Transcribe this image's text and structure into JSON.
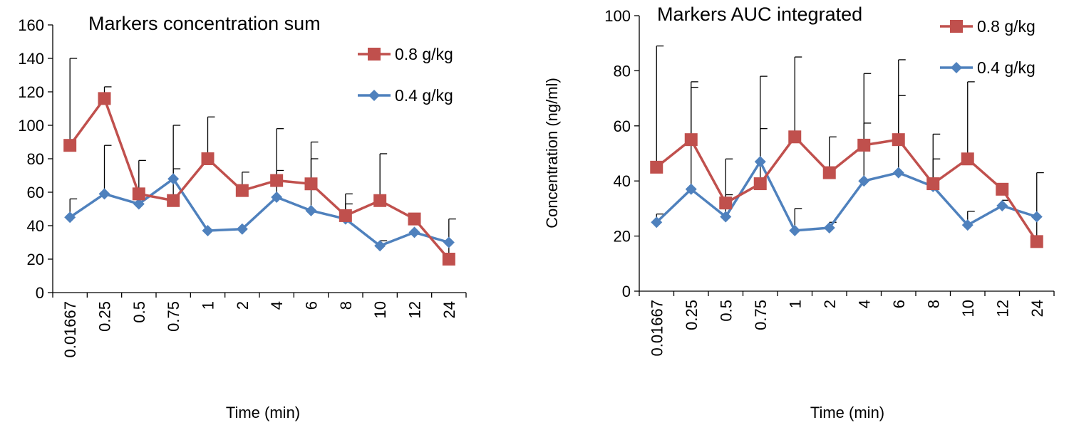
{
  "chart_data": [
    {
      "type": "line",
      "title": "Markers concentration sum",
      "xlabel": "Time (min)",
      "ylabel": "",
      "ylim": [
        0,
        160
      ],
      "yticks": [
        0,
        20,
        40,
        60,
        80,
        100,
        120,
        140,
        160
      ],
      "categories": [
        "0.01667",
        "0.25",
        "0.5",
        "0.75",
        "1",
        "2",
        "4",
        "6",
        "8",
        "10",
        "12",
        "24"
      ],
      "legend_position": "top-right",
      "series": [
        {
          "name": "0.8 g/kg",
          "color": "#C0504D",
          "marker": "square",
          "values": [
            88,
            116,
            59,
            55,
            80,
            61,
            67,
            65,
            46,
            55,
            44,
            20
          ],
          "error_upper": [
            140,
            123,
            79,
            74,
            105,
            72,
            98,
            90,
            59,
            83,
            44,
            44
          ]
        },
        {
          "name": "0.4 g/kg",
          "color": "#4F81BD",
          "marker": "diamond",
          "values": [
            45,
            59,
            53,
            68,
            37,
            38,
            57,
            49,
            44,
            28,
            36,
            30
          ],
          "error_upper": [
            56,
            88,
            53,
            100,
            37,
            38,
            73,
            80,
            53,
            31,
            36,
            30
          ]
        }
      ]
    },
    {
      "type": "line",
      "title": "Markers AUC integrated",
      "xlabel": "Time (min)",
      "ylabel": "Concentration (ng/ml)",
      "ylim": [
        0,
        100
      ],
      "yticks": [
        0,
        20,
        40,
        60,
        80,
        100
      ],
      "categories": [
        "0.01667",
        "0.25",
        "0.5",
        "0.75",
        "1",
        "2",
        "4",
        "6",
        "8",
        "10",
        "12",
        "24"
      ],
      "legend_position": "top-right",
      "series": [
        {
          "name": "0.8 g/kg",
          "color": "#C0504D",
          "marker": "square",
          "values": [
            45,
            55,
            32,
            39,
            56,
            43,
            53,
            55,
            39,
            48,
            37,
            18
          ],
          "error_upper": [
            89,
            76,
            48,
            59,
            85,
            56,
            79,
            84,
            57,
            76,
            37,
            43
          ]
        },
        {
          "name": "0.4 g/kg",
          "color": "#4F81BD",
          "marker": "diamond",
          "values": [
            25,
            37,
            27,
            47,
            22,
            23,
            40,
            43,
            38,
            24,
            31,
            27
          ],
          "error_upper": [
            28,
            74,
            35,
            78,
            30,
            25,
            61,
            71,
            48,
            29,
            33,
            27
          ]
        }
      ]
    }
  ]
}
